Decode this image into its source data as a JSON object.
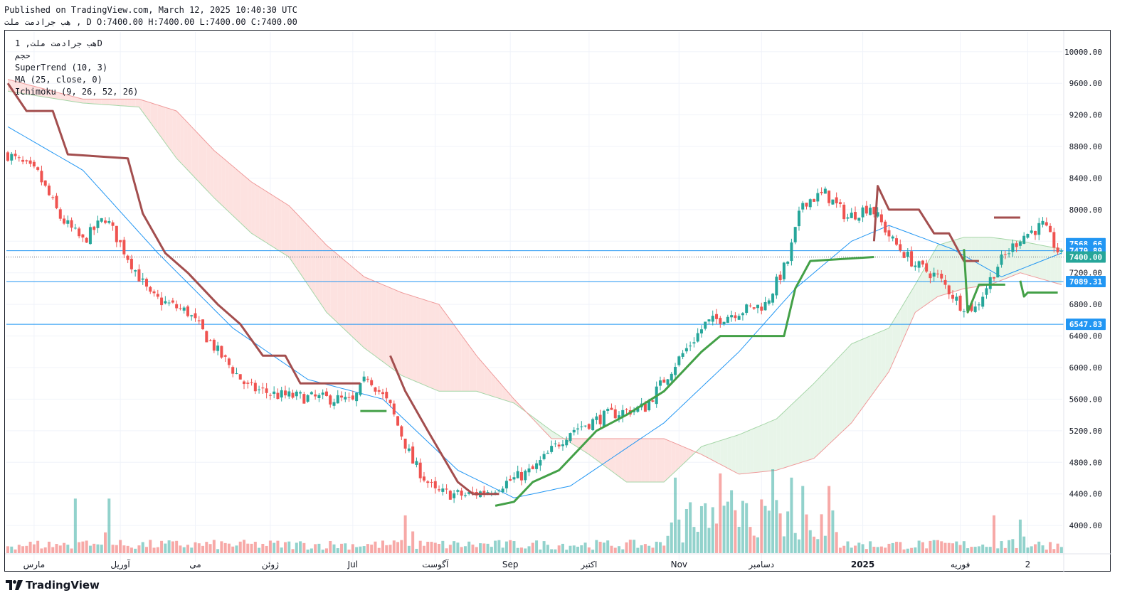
{
  "header": {
    "published": "Published on TradingView.com, March 12, 2025 10:40:30 UTC",
    "ohlc": "هب جرادمت ملت , D O:7400.00 H:7400.00 L:7400.00 C:7400.00"
  },
  "legend": {
    "symbol_line": "هب جرادمت ملت, 1D",
    "volume": "حجم",
    "supertrend": "SuperTrend (10, 3)",
    "ma": "MA (25, close, 0)",
    "ichimoku": "Ichimoku (9, 26, 52, 26)"
  },
  "footer": {
    "brand": "TradingView"
  },
  "colors": {
    "up": "#26a69a",
    "down": "#ef5350",
    "supertrend_up": "#43a047",
    "supertrend_down": "#a34e4e",
    "ma": "#2196f3",
    "hline": "#2196f3",
    "cloud_bull": "#e8f5e9",
    "cloud_bear": "#fde2e0"
  },
  "chart_data": {
    "type": "candlestick",
    "y_axis": {
      "ticks": [
        "10000.00",
        "9600.00",
        "9200.00",
        "8800.00",
        "8400.00",
        "8000.00",
        "7600.00",
        "7200.00",
        "6800.00",
        "6400.00",
        "6000.00",
        "5600.00",
        "5200.00",
        "4800.00",
        "4400.00",
        "4000.00"
      ],
      "min": 3650,
      "max": 10250
    },
    "x_axis": {
      "labels": [
        "مارس",
        "آوریل",
        "می",
        "ژوئن",
        "Jul",
        "آگوست",
        "Sep",
        "اکتبر",
        "Nov",
        "دسامبر",
        "2025",
        "فوریه",
        "2"
      ]
    },
    "price_labels": [
      {
        "text": "7568.66",
        "value": 7568.66
      },
      {
        "text": "7479.89",
        "value": 7479.89
      },
      {
        "text": "7400.00",
        "value": 7400.0
      },
      {
        "text": "7089.31",
        "value": 7089.31
      },
      {
        "text": "6547.83",
        "value": 6547.83
      }
    ],
    "horizontal_lines": [
      7479.89,
      7089.31,
      6547.83
    ],
    "last_price": 7400.0,
    "price_keypoints": [
      {
        "t": 0,
        "p": 8700
      },
      {
        "t": 8,
        "p": 8450
      },
      {
        "t": 14,
        "p": 7900
      },
      {
        "t": 20,
        "p": 7600
      },
      {
        "t": 26,
        "p": 7900
      },
      {
        "t": 32,
        "p": 7400
      },
      {
        "t": 38,
        "p": 6900
      },
      {
        "t": 48,
        "p": 6700
      },
      {
        "t": 56,
        "p": 6200
      },
      {
        "t": 64,
        "p": 5750
      },
      {
        "t": 72,
        "p": 5650
      },
      {
        "t": 80,
        "p": 5620
      },
      {
        "t": 88,
        "p": 5600
      },
      {
        "t": 92,
        "p": 5560
      },
      {
        "t": 96,
        "p": 5900
      },
      {
        "t": 102,
        "p": 5500
      },
      {
        "t": 108,
        "p": 4800
      },
      {
        "t": 114,
        "p": 4420
      },
      {
        "t": 122,
        "p": 4380
      },
      {
        "t": 128,
        "p": 4440
      },
      {
        "t": 140,
        "p": 4700
      },
      {
        "t": 150,
        "p": 5200
      },
      {
        "t": 160,
        "p": 5400
      },
      {
        "t": 170,
        "p": 5500
      },
      {
        "t": 178,
        "p": 6050
      },
      {
        "t": 186,
        "p": 6550
      },
      {
        "t": 194,
        "p": 6700
      },
      {
        "t": 202,
        "p": 6800
      },
      {
        "t": 208,
        "p": 7350
      },
      {
        "t": 212,
        "p": 8100
      },
      {
        "t": 218,
        "p": 8200
      },
      {
        "t": 224,
        "p": 7900
      },
      {
        "t": 230,
        "p": 8050
      },
      {
        "t": 236,
        "p": 7600
      },
      {
        "t": 242,
        "p": 7300
      },
      {
        "t": 248,
        "p": 7150
      },
      {
        "t": 254,
        "p": 6800
      },
      {
        "t": 258,
        "p": 6750
      },
      {
        "t": 264,
        "p": 7300
      },
      {
        "t": 270,
        "p": 7650
      },
      {
        "t": 276,
        "p": 7800
      },
      {
        "t": 281,
        "p": 7400
      }
    ],
    "volume_keypoints": [
      {
        "t": 18,
        "v": 0.65
      },
      {
        "t": 27,
        "v": 0.65
      },
      {
        "t": 106,
        "v": 0.45
      },
      {
        "t": 178,
        "v": 0.9
      },
      {
        "t": 190,
        "v": 0.95
      },
      {
        "t": 193,
        "v": 0.75
      },
      {
        "t": 204,
        "v": 1.0
      },
      {
        "t": 209,
        "v": 0.9
      },
      {
        "t": 212,
        "v": 0.8
      },
      {
        "t": 219,
        "v": 0.8
      },
      {
        "t": 263,
        "v": 0.45
      },
      {
        "t": 270,
        "v": 0.4
      }
    ],
    "ma_keypoints": [
      {
        "t": 0,
        "p": 9050
      },
      {
        "t": 20,
        "p": 8500
      },
      {
        "t": 40,
        "p": 7450
      },
      {
        "t": 60,
        "p": 6500
      },
      {
        "t": 80,
        "p": 5850
      },
      {
        "t": 100,
        "p": 5600
      },
      {
        "t": 120,
        "p": 4700
      },
      {
        "t": 135,
        "p": 4350
      },
      {
        "t": 150,
        "p": 4500
      },
      {
        "t": 175,
        "p": 5300
      },
      {
        "t": 195,
        "p": 6200
      },
      {
        "t": 210,
        "p": 7000
      },
      {
        "t": 225,
        "p": 7600
      },
      {
        "t": 235,
        "p": 7800
      },
      {
        "t": 252,
        "p": 7500
      },
      {
        "t": 265,
        "p": 7150
      },
      {
        "t": 281,
        "p": 7450
      }
    ],
    "supertrend_down": [
      [
        {
          "t": 0,
          "p": 9600
        },
        {
          "t": 5,
          "p": 9250
        },
        {
          "t": 12,
          "p": 9250
        },
        {
          "t": 16,
          "p": 8700
        },
        {
          "t": 32,
          "p": 8650
        },
        {
          "t": 36,
          "p": 7950
        },
        {
          "t": 42,
          "p": 7450
        },
        {
          "t": 48,
          "p": 7200
        },
        {
          "t": 56,
          "p": 6800
        },
        {
          "t": 62,
          "p": 6550
        },
        {
          "t": 68,
          "p": 6150
        },
        {
          "t": 74,
          "p": 6150
        },
        {
          "t": 78,
          "p": 5800
        },
        {
          "t": 94,
          "p": 5800
        }
      ],
      [
        {
          "t": 102,
          "p": 6150
        },
        {
          "t": 106,
          "p": 5700
        },
        {
          "t": 112,
          "p": 5200
        },
        {
          "t": 120,
          "p": 4550
        },
        {
          "t": 124,
          "p": 4400
        },
        {
          "t": 131,
          "p": 4400
        }
      ],
      [
        {
          "t": 231,
          "p": 7600
        },
        {
          "t": 232,
          "p": 8300
        },
        {
          "t": 235,
          "p": 8000
        },
        {
          "t": 243,
          "p": 8000
        },
        {
          "t": 247,
          "p": 7700
        },
        {
          "t": 251,
          "p": 7700
        },
        {
          "t": 255,
          "p": 7350
        },
        {
          "t": 259,
          "p": 7350
        }
      ],
      [
        {
          "t": 263,
          "p": 7900
        },
        {
          "t": 270,
          "p": 7900
        }
      ]
    ],
    "supertrend_up": [
      [
        {
          "t": 94,
          "p": 5450
        },
        {
          "t": 101,
          "p": 5450
        }
      ],
      [
        {
          "t": 130,
          "p": 4250
        },
        {
          "t": 135,
          "p": 4300
        },
        {
          "t": 140,
          "p": 4550
        },
        {
          "t": 147,
          "p": 4700
        },
        {
          "t": 153,
          "p": 5000
        },
        {
          "t": 157,
          "p": 5200
        },
        {
          "t": 165,
          "p": 5400
        },
        {
          "t": 175,
          "p": 5700
        },
        {
          "t": 185,
          "p": 6200
        },
        {
          "t": 190,
          "p": 6400
        },
        {
          "t": 207,
          "p": 6400
        },
        {
          "t": 210,
          "p": 7000
        },
        {
          "t": 214,
          "p": 7350
        },
        {
          "t": 231,
          "p": 7400
        }
      ],
      [
        {
          "t": 255,
          "p": 7500
        },
        {
          "t": 256,
          "p": 6700
        },
        {
          "t": 259,
          "p": 7050
        },
        {
          "t": 264,
          "p": 7050
        },
        {
          "t": 266,
          "p": 7050
        }
      ],
      [
        {
          "t": 270,
          "p": 7100
        },
        {
          "t": 271,
          "p": 6900
        },
        {
          "t": 272,
          "p": 6950
        },
        {
          "t": 280,
          "p": 6950
        }
      ]
    ],
    "cloud_a": [
      {
        "t": 0,
        "p": 9500
      },
      {
        "t": 20,
        "p": 9350
      },
      {
        "t": 35,
        "p": 9300
      },
      {
        "t": 45,
        "p": 8650
      },
      {
        "t": 55,
        "p": 8150
      },
      {
        "t": 65,
        "p": 7700
      },
      {
        "t": 75,
        "p": 7400
      },
      {
        "t": 85,
        "p": 6700
      },
      {
        "t": 95,
        "p": 6250
      },
      {
        "t": 105,
        "p": 5900
      },
      {
        "t": 115,
        "p": 5700
      },
      {
        "t": 125,
        "p": 5700
      },
      {
        "t": 135,
        "p": 5550
      },
      {
        "t": 145,
        "p": 5200
      },
      {
        "t": 155,
        "p": 4900
      },
      {
        "t": 165,
        "p": 4550
      },
      {
        "t": 175,
        "p": 4550
      },
      {
        "t": 185,
        "p": 5000
      },
      {
        "t": 195,
        "p": 5150
      },
      {
        "t": 205,
        "p": 5350
      },
      {
        "t": 215,
        "p": 5800
      },
      {
        "t": 225,
        "p": 6300
      },
      {
        "t": 235,
        "p": 6500
      },
      {
        "t": 242,
        "p": 7050
      },
      {
        "t": 248,
        "p": 7550
      },
      {
        "t": 255,
        "p": 7650
      },
      {
        "t": 262,
        "p": 7650
      },
      {
        "t": 270,
        "p": 7600
      },
      {
        "t": 281,
        "p": 7500
      }
    ],
    "cloud_b": [
      {
        "t": 0,
        "p": 9650
      },
      {
        "t": 20,
        "p": 9400
      },
      {
        "t": 35,
        "p": 9400
      },
      {
        "t": 45,
        "p": 9250
      },
      {
        "t": 55,
        "p": 8750
      },
      {
        "t": 65,
        "p": 8350
      },
      {
        "t": 75,
        "p": 8050
      },
      {
        "t": 85,
        "p": 7550
      },
      {
        "t": 95,
        "p": 7150
      },
      {
        "t": 105,
        "p": 6950
      },
      {
        "t": 115,
        "p": 6800
      },
      {
        "t": 125,
        "p": 6150
      },
      {
        "t": 135,
        "p": 5600
      },
      {
        "t": 145,
        "p": 5100
      },
      {
        "t": 155,
        "p": 5100
      },
      {
        "t": 165,
        "p": 5100
      },
      {
        "t": 175,
        "p": 5100
      },
      {
        "t": 185,
        "p": 4900
      },
      {
        "t": 195,
        "p": 4650
      },
      {
        "t": 205,
        "p": 4700
      },
      {
        "t": 215,
        "p": 4850
      },
      {
        "t": 225,
        "p": 5300
      },
      {
        "t": 235,
        "p": 5950
      },
      {
        "t": 242,
        "p": 6700
      },
      {
        "t": 248,
        "p": 6900
      },
      {
        "t": 255,
        "p": 7000
      },
      {
        "t": 262,
        "p": 7050
      },
      {
        "t": 270,
        "p": 7200
      },
      {
        "t": 281,
        "p": 7050
      }
    ]
  }
}
